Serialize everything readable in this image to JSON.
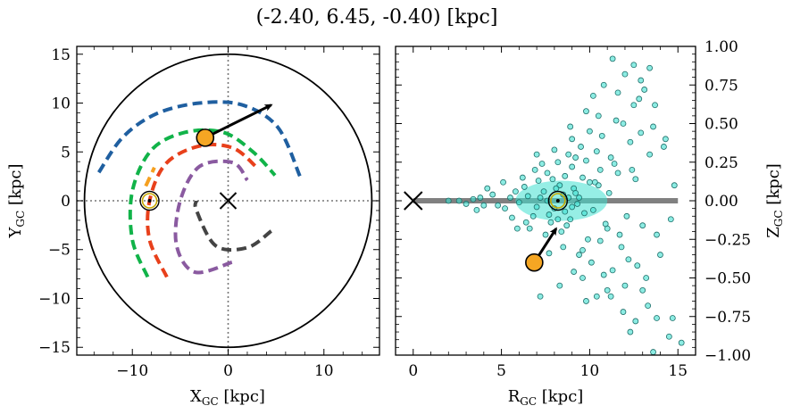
{
  "title": "(-2.40, 6.45, -0.40) [kpc]",
  "colors": {
    "background": "#ffffff",
    "axes": "#000000",
    "arm_blue": "#1f5fa0",
    "arm_green": "#11b349",
    "arm_orange": "#f5a020",
    "arm_red": "#e8401b",
    "arm_purple": "#8a5aa0",
    "arm_dark": "#444444",
    "point_fill": "#f5a623",
    "scatter_fill": "#40e0d0",
    "scatter_edge": "#1f6f6a",
    "zero_line": "#808080"
  },
  "chart_data": [
    {
      "type": "line",
      "xlabel": "X",
      "xlabel_sub": "GC",
      "xlabel_unit": " [kpc]",
      "ylabel": "Y",
      "ylabel_sub": "GC",
      "ylabel_unit": " [kpc]",
      "xlim": [
        -15.8,
        15.8
      ],
      "ylim": [
        -15.8,
        15.8
      ],
      "xticks": [
        -10,
        0,
        10
      ],
      "xtick_labels": [
        "−10",
        "0",
        "10"
      ],
      "yticks": [
        -15,
        -10,
        -5,
        0,
        5,
        10,
        15
      ],
      "ytick_labels": [
        "−15",
        "−10",
        "−5",
        "0",
        "5",
        "10",
        "15"
      ],
      "circle_radius": 15,
      "zero_lines": true,
      "series": [
        {
          "color_key": "arm_blue",
          "points": [
            [
              -13.5,
              2.9
            ],
            [
              -11.0,
              6.5
            ],
            [
              -7.5,
              8.9
            ],
            [
              -3.0,
              10.0
            ],
            [
              1.5,
              9.8
            ],
            [
              5.2,
              7.5
            ],
            [
              7.5,
              2.5
            ]
          ]
        },
        {
          "color_key": "arm_green",
          "points": [
            [
              -8.4,
              -7.8
            ],
            [
              -10.0,
              -4.0
            ],
            [
              -10.0,
              1.0
            ],
            [
              -8.0,
              5.2
            ],
            [
              -4.5,
              7.0
            ],
            [
              -0.5,
              7.0
            ],
            [
              2.6,
              5.0
            ],
            [
              4.9,
              2.6
            ]
          ]
        },
        {
          "color_key": "arm_orange",
          "points": [
            [
              -8.6,
              1.5
            ],
            [
              -7.7,
              3.4
            ]
          ]
        },
        {
          "color_key": "arm_red",
          "points": [
            [
              -6.4,
              -7.8
            ],
            [
              -8.2,
              -4.0
            ],
            [
              -8.2,
              0.0
            ],
            [
              -6.5,
              3.8
            ],
            [
              -3.0,
              5.6
            ],
            [
              0.5,
              5.4
            ],
            [
              3.0,
              3.4
            ]
          ]
        },
        {
          "color_key": "arm_purple",
          "points": [
            [
              0.4,
              -6.3
            ],
            [
              -3.5,
              -7.3
            ],
            [
              -5.4,
              -4.5
            ],
            [
              -5.0,
              0.0
            ],
            [
              -3.0,
              3.5
            ],
            [
              0.5,
              3.9
            ],
            [
              2.0,
              2.1
            ]
          ]
        },
        {
          "color_key": "arm_dark",
          "points": [
            [
              4.5,
              -3.1
            ],
            [
              2.0,
              -4.8
            ],
            [
              -1.3,
              -4.6
            ],
            [
              -3.3,
              -1.0
            ],
            [
              -3.3,
              0.0
            ]
          ]
        }
      ],
      "sun": [
        -8.2,
        0.0
      ],
      "gc_marker": [
        0,
        0
      ],
      "object": [
        -2.4,
        6.45
      ],
      "velocity_arrow_tip": [
        4.5,
        9.8
      ]
    },
    {
      "type": "scatter",
      "xlabel": "R",
      "xlabel_sub": "GC",
      "xlabel_unit": " [kpc]",
      "ylabel": "Z",
      "ylabel_sub": "GC",
      "ylabel_unit": " [kpc]",
      "xlim": [
        -1.0,
        16.0
      ],
      "ylim": [
        -1.0,
        1.0
      ],
      "xticks": [
        0,
        5,
        10,
        15
      ],
      "xtick_labels": [
        "0",
        "5",
        "10",
        "15"
      ],
      "yticks": [
        -1.0,
        -0.75,
        -0.5,
        -0.25,
        0.0,
        0.25,
        0.5,
        0.75,
        1.0
      ],
      "ytick_labels": [
        "−1.00",
        "−0.75",
        "−0.50",
        "−0.25",
        "0.00",
        "0.25",
        "0.50",
        "0.75",
        "1.00"
      ],
      "zero_line_range": [
        0,
        15
      ],
      "gc_marker": [
        0,
        0
      ],
      "sun": [
        8.2,
        0.0
      ],
      "object": [
        6.86,
        -0.4
      ],
      "velocity_arrow_tip": [
        8.1,
        -0.18
      ],
      "scatter_points": [
        [
          7.2,
          0.02
        ],
        [
          8.0,
          -0.05
        ],
        [
          8.5,
          0.04
        ],
        [
          9.1,
          0.08
        ],
        [
          7.7,
          -0.09
        ],
        [
          8.9,
          -0.12
        ],
        [
          9.6,
          0.15
        ],
        [
          10.2,
          -0.06
        ],
        [
          6.5,
          0.03
        ],
        [
          7.0,
          -0.04
        ],
        [
          8.3,
          0.1
        ],
        [
          9.3,
          -0.02
        ],
        [
          10.6,
          0.2
        ],
        [
          11.0,
          -0.18
        ],
        [
          6.0,
          -0.01
        ],
        [
          5.5,
          0.02
        ],
        [
          4.8,
          -0.03
        ],
        [
          3.4,
          0.01
        ],
        [
          2.6,
          0.0
        ],
        [
          2.0,
          0.0
        ],
        [
          7.9,
          0.14
        ],
        [
          8.7,
          -0.16
        ],
        [
          9.8,
          0.26
        ],
        [
          10.4,
          0.32
        ],
        [
          11.2,
          0.28
        ],
        [
          11.8,
          -0.3
        ],
        [
          12.3,
          0.38
        ],
        [
          12.7,
          -0.42
        ],
        [
          13.4,
          0.3
        ],
        [
          13.8,
          -0.22
        ],
        [
          9.0,
          0.4
        ],
        [
          9.4,
          -0.35
        ],
        [
          10.0,
          0.45
        ],
        [
          10.8,
          -0.48
        ],
        [
          11.5,
          0.52
        ],
        [
          12.0,
          -0.55
        ],
        [
          12.5,
          0.62
        ],
        [
          13.0,
          -0.58
        ],
        [
          13.6,
          0.48
        ],
        [
          14.2,
          0.35
        ],
        [
          7.4,
          0.06
        ],
        [
          8.1,
          0.08
        ],
        [
          8.6,
          -0.07
        ],
        [
          9.2,
          0.05
        ],
        [
          7.6,
          0.18
        ],
        [
          8.4,
          -0.2
        ],
        [
          9.0,
          0.22
        ],
        [
          9.9,
          -0.25
        ],
        [
          10.5,
          0.1
        ],
        [
          11.1,
          0.05
        ],
        [
          6.3,
          0.09
        ],
        [
          6.8,
          -0.1
        ],
        [
          7.1,
          0.13
        ],
        [
          7.8,
          -0.14
        ],
        [
          5.8,
          0.06
        ],
        [
          5.2,
          -0.05
        ],
        [
          4.5,
          0.04
        ],
        [
          4.0,
          -0.03
        ],
        [
          3.8,
          0.02
        ],
        [
          3.0,
          -0.02
        ],
        [
          8.2,
          0.25
        ],
        [
          8.8,
          0.3
        ],
        [
          9.5,
          0.35
        ],
        [
          10.1,
          -0.4
        ],
        [
          10.7,
          0.42
        ],
        [
          11.3,
          -0.45
        ],
        [
          11.9,
          0.5
        ],
        [
          12.2,
          -0.38
        ],
        [
          12.9,
          0.44
        ],
        [
          13.2,
          -0.5
        ],
        [
          7.5,
          -0.22
        ],
        [
          7.3,
          0.24
        ],
        [
          6.6,
          -0.18
        ],
        [
          6.9,
          0.2
        ],
        [
          9.7,
          -0.08
        ],
        [
          10.3,
          0.12
        ],
        [
          10.9,
          -0.15
        ],
        [
          11.6,
          0.18
        ],
        [
          12.1,
          -0.1
        ],
        [
          12.6,
          0.14
        ],
        [
          8.0,
          0.33
        ],
        [
          8.5,
          -0.3
        ],
        [
          9.2,
          0.28
        ],
        [
          9.6,
          -0.32
        ],
        [
          10.0,
          0.12
        ],
        [
          10.6,
          -0.26
        ],
        [
          11.4,
          0.24
        ],
        [
          11.7,
          -0.22
        ],
        [
          12.4,
          0.2
        ],
        [
          13.0,
          -0.16
        ],
        [
          12.0,
          0.82
        ],
        [
          12.5,
          0.88
        ],
        [
          11.3,
          0.92
        ],
        [
          13.4,
          0.86
        ],
        [
          11.6,
          0.7
        ],
        [
          12.9,
          0.78
        ],
        [
          10.2,
          0.68
        ],
        [
          10.8,
          0.75
        ],
        [
          9.8,
          0.58
        ],
        [
          13.1,
          0.72
        ],
        [
          11.9,
          -0.72
        ],
        [
          12.6,
          -0.78
        ],
        [
          13.8,
          -0.76
        ],
        [
          14.7,
          -0.76
        ],
        [
          15.2,
          -0.92
        ],
        [
          14.5,
          -0.88
        ],
        [
          13.6,
          -0.98
        ],
        [
          12.3,
          -0.85
        ],
        [
          9.8,
          -0.65
        ],
        [
          10.4,
          -0.62
        ],
        [
          7.2,
          -0.62
        ],
        [
          8.3,
          -0.55
        ],
        [
          9.6,
          -0.5
        ],
        [
          11.0,
          -0.58
        ],
        [
          14.3,
          0.4
        ],
        [
          14.8,
          0.1
        ],
        [
          14.0,
          -0.35
        ],
        [
          13.7,
          0.62
        ],
        [
          14.6,
          -0.12
        ],
        [
          5.1,
          0.12
        ],
        [
          5.6,
          -0.11
        ],
        [
          6.2,
          0.15
        ],
        [
          6.4,
          -0.14
        ],
        [
          4.2,
          0.08
        ],
        [
          3.6,
          -0.06
        ],
        [
          5.9,
          -0.18
        ],
        [
          7.0,
          0.3
        ],
        [
          7.7,
          -0.34
        ],
        [
          8.9,
          0.48
        ],
        [
          9.1,
          -0.46
        ],
        [
          10.5,
          0.55
        ],
        [
          11.2,
          -0.62
        ],
        [
          12.8,
          0.66
        ],
        [
          13.3,
          -0.68
        ],
        [
          8.6,
          0.16
        ],
        [
          8.8,
          0.02
        ],
        [
          9.4,
          0.02
        ],
        [
          9.0,
          -0.04
        ],
        [
          8.2,
          -0.12
        ],
        [
          7.6,
          0.0
        ]
      ]
    }
  ]
}
